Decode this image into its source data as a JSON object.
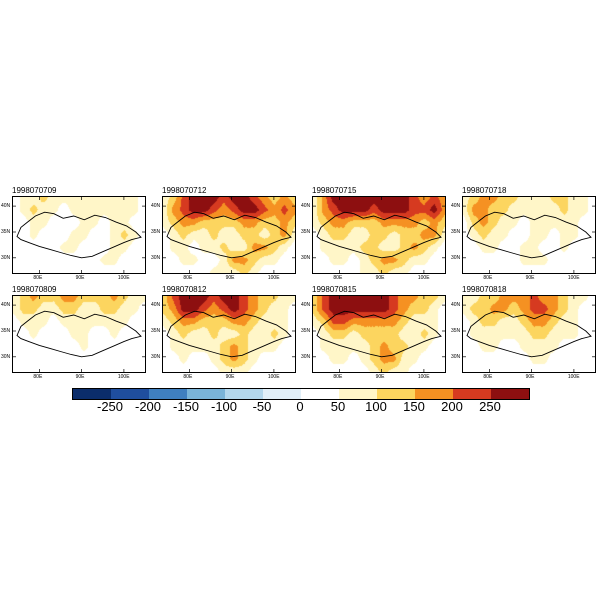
{
  "figure": {
    "background": "#ffffff"
  },
  "chart_data": {
    "type": "heatmap",
    "description": "Eight-panel filled-contour anomaly maps over the Tibetan Plateau at 3-hourly times, with shared diverging colorbar",
    "grid_shape": [
      7,
      14
    ],
    "value_bins": [
      -250,
      -200,
      -150,
      -100,
      -50,
      0,
      50,
      100,
      150,
      200,
      250
    ],
    "bin_colors": [
      "#0b2d6b",
      "#1f4e9e",
      "#3f7fbf",
      "#7ab4d8",
      "#b3d7ec",
      "#e1eff8",
      "#ffffff",
      "#fff6c8",
      "#fcd55f",
      "#f59122",
      "#d63a20",
      "#8d0f10"
    ],
    "colorbar_labels": [
      "-250",
      "-200",
      "-150",
      "-100",
      "-50",
      "0",
      "50",
      "100",
      "150",
      "200",
      "250"
    ],
    "x_ticks": [
      "80E",
      "90E",
      "100E"
    ],
    "y_ticks": [
      "40N",
      "35N",
      "30N"
    ],
    "panels": [
      {
        "title": "1998070709",
        "grid": [
          [
            20,
            70,
            70,
            120,
            70,
            70,
            70,
            70,
            70,
            70,
            70,
            70,
            70,
            20
          ],
          [
            20,
            70,
            120,
            70,
            70,
            20,
            70,
            70,
            70,
            70,
            70,
            70,
            70,
            20
          ],
          [
            20,
            20,
            70,
            70,
            20,
            20,
            20,
            70,
            70,
            20,
            70,
            70,
            20,
            20
          ],
          [
            20,
            20,
            70,
            20,
            20,
            20,
            70,
            70,
            20,
            20,
            70,
            120,
            70,
            20
          ],
          [
            20,
            20,
            20,
            20,
            20,
            70,
            70,
            20,
            20,
            20,
            70,
            70,
            20,
            20
          ],
          [
            20,
            20,
            20,
            20,
            20,
            20,
            20,
            20,
            20,
            70,
            70,
            20,
            20,
            20
          ],
          [
            20,
            20,
            20,
            20,
            20,
            20,
            20,
            20,
            20,
            20,
            20,
            20,
            20,
            20
          ]
        ]
      },
      {
        "title": "1998070712",
        "grid": [
          [
            70,
            120,
            220,
            280,
            280,
            280,
            220,
            280,
            280,
            220,
            170,
            120,
            170,
            120
          ],
          [
            70,
            170,
            220,
            280,
            280,
            220,
            170,
            220,
            280,
            280,
            220,
            170,
            220,
            170
          ],
          [
            70,
            120,
            170,
            170,
            120,
            120,
            120,
            120,
            170,
            170,
            120,
            120,
            170,
            120
          ],
          [
            20,
            70,
            120,
            70,
            70,
            120,
            70,
            70,
            120,
            120,
            70,
            120,
            170,
            70
          ],
          [
            20,
            70,
            70,
            20,
            70,
            70,
            120,
            70,
            70,
            170,
            170,
            120,
            70,
            20
          ],
          [
            20,
            20,
            70,
            70,
            20,
            20,
            70,
            170,
            170,
            120,
            70,
            70,
            20,
            20
          ],
          [
            20,
            20,
            20,
            20,
            20,
            70,
            70,
            70,
            120,
            70,
            20,
            20,
            20,
            20
          ]
        ]
      },
      {
        "title": "1998070715",
        "grid": [
          [
            70,
            170,
            280,
            280,
            280,
            280,
            280,
            280,
            280,
            280,
            220,
            170,
            220,
            170
          ],
          [
            70,
            170,
            220,
            280,
            280,
            280,
            220,
            280,
            280,
            280,
            220,
            220,
            280,
            170
          ],
          [
            70,
            120,
            170,
            170,
            120,
            120,
            120,
            170,
            170,
            170,
            170,
            120,
            170,
            120
          ],
          [
            20,
            70,
            120,
            120,
            70,
            70,
            120,
            120,
            70,
            120,
            120,
            170,
            170,
            70
          ],
          [
            20,
            70,
            70,
            70,
            70,
            120,
            120,
            70,
            70,
            120,
            170,
            120,
            70,
            20
          ],
          [
            20,
            20,
            70,
            70,
            20,
            70,
            120,
            170,
            170,
            120,
            70,
            70,
            20,
            20
          ],
          [
            20,
            20,
            20,
            20,
            20,
            70,
            70,
            120,
            70,
            70,
            20,
            20,
            20,
            20
          ]
        ]
      },
      {
        "title": "1998070718",
        "grid": [
          [
            70,
            120,
            170,
            170,
            120,
            120,
            70,
            70,
            70,
            120,
            120,
            70,
            70,
            20
          ],
          [
            70,
            170,
            170,
            120,
            120,
            70,
            70,
            70,
            70,
            70,
            120,
            70,
            70,
            20
          ],
          [
            20,
            120,
            170,
            120,
            70,
            70,
            20,
            70,
            70,
            70,
            70,
            70,
            20,
            20
          ],
          [
            20,
            70,
            120,
            70,
            70,
            20,
            20,
            70,
            70,
            20,
            70,
            70,
            20,
            20
          ],
          [
            20,
            20,
            70,
            70,
            20,
            20,
            70,
            70,
            20,
            20,
            70,
            20,
            20,
            20
          ],
          [
            20,
            20,
            20,
            20,
            20,
            20,
            70,
            70,
            70,
            20,
            20,
            20,
            20,
            20
          ],
          [
            20,
            20,
            20,
            20,
            20,
            20,
            20,
            20,
            20,
            20,
            20,
            20,
            20,
            20
          ]
        ]
      },
      {
        "title": "1998070809",
        "grid": [
          [
            70,
            120,
            170,
            120,
            120,
            170,
            170,
            120,
            120,
            120,
            170,
            120,
            70,
            70
          ],
          [
            70,
            120,
            120,
            70,
            70,
            120,
            120,
            70,
            70,
            120,
            120,
            70,
            70,
            20
          ],
          [
            20,
            70,
            70,
            70,
            20,
            70,
            70,
            70,
            70,
            70,
            70,
            70,
            20,
            20
          ],
          [
            20,
            20,
            70,
            20,
            20,
            20,
            70,
            70,
            20,
            20,
            70,
            20,
            20,
            20
          ],
          [
            20,
            20,
            20,
            20,
            20,
            20,
            20,
            70,
            20,
            20,
            20,
            20,
            20,
            20
          ],
          [
            20,
            20,
            20,
            20,
            20,
            20,
            20,
            20,
            20,
            20,
            20,
            20,
            20,
            20
          ],
          [
            20,
            20,
            20,
            20,
            20,
            20,
            20,
            20,
            20,
            20,
            20,
            20,
            20,
            20
          ]
        ]
      },
      {
        "title": "1998070812",
        "grid": [
          [
            120,
            220,
            280,
            280,
            280,
            220,
            280,
            280,
            220,
            170,
            120,
            120,
            70,
            70
          ],
          [
            120,
            170,
            280,
            280,
            220,
            170,
            220,
            280,
            220,
            170,
            120,
            70,
            70,
            20
          ],
          [
            70,
            120,
            170,
            170,
            120,
            120,
            120,
            170,
            170,
            120,
            70,
            70,
            70,
            20
          ],
          [
            20,
            70,
            120,
            70,
            70,
            120,
            70,
            70,
            120,
            70,
            70,
            120,
            70,
            20
          ],
          [
            20,
            70,
            70,
            70,
            70,
            70,
            120,
            170,
            120,
            70,
            70,
            70,
            20,
            20
          ],
          [
            20,
            20,
            70,
            20,
            20,
            70,
            120,
            170,
            120,
            70,
            20,
            20,
            20,
            20
          ],
          [
            20,
            20,
            20,
            20,
            20,
            20,
            70,
            70,
            70,
            20,
            20,
            20,
            20,
            20
          ]
        ]
      },
      {
        "title": "1998070815",
        "grid": [
          [
            120,
            220,
            280,
            280,
            280,
            280,
            280,
            280,
            220,
            170,
            170,
            120,
            120,
            70
          ],
          [
            120,
            220,
            280,
            280,
            280,
            280,
            280,
            280,
            220,
            170,
            120,
            120,
            70,
            20
          ],
          [
            70,
            120,
            220,
            220,
            170,
            170,
            170,
            170,
            170,
            120,
            70,
            70,
            70,
            20
          ],
          [
            20,
            70,
            120,
            120,
            70,
            120,
            120,
            120,
            120,
            70,
            70,
            120,
            70,
            20
          ],
          [
            20,
            70,
            70,
            70,
            70,
            70,
            120,
            170,
            120,
            120,
            70,
            70,
            20,
            20
          ],
          [
            20,
            20,
            70,
            70,
            20,
            70,
            120,
            170,
            170,
            70,
            70,
            20,
            20,
            20
          ],
          [
            20,
            20,
            20,
            20,
            20,
            20,
            70,
            120,
            70,
            70,
            20,
            20,
            20,
            20
          ]
        ]
      },
      {
        "title": "1998070818",
        "grid": [
          [
            70,
            70,
            120,
            120,
            170,
            170,
            170,
            220,
            170,
            170,
            120,
            70,
            70,
            20
          ],
          [
            70,
            120,
            120,
            170,
            170,
            120,
            170,
            220,
            220,
            170,
            120,
            70,
            20,
            20
          ],
          [
            20,
            70,
            120,
            120,
            70,
            70,
            120,
            170,
            170,
            120,
            70,
            70,
            20,
            20
          ],
          [
            20,
            70,
            70,
            70,
            70,
            70,
            70,
            120,
            120,
            70,
            70,
            70,
            20,
            20
          ],
          [
            20,
            20,
            70,
            70,
            20,
            20,
            70,
            70,
            70,
            70,
            20,
            20,
            20,
            20
          ],
          [
            20,
            20,
            20,
            20,
            20,
            20,
            20,
            70,
            70,
            20,
            20,
            20,
            20,
            20
          ],
          [
            20,
            20,
            20,
            20,
            20,
            20,
            20,
            20,
            20,
            20,
            20,
            20,
            20,
            20
          ]
        ]
      }
    ]
  }
}
